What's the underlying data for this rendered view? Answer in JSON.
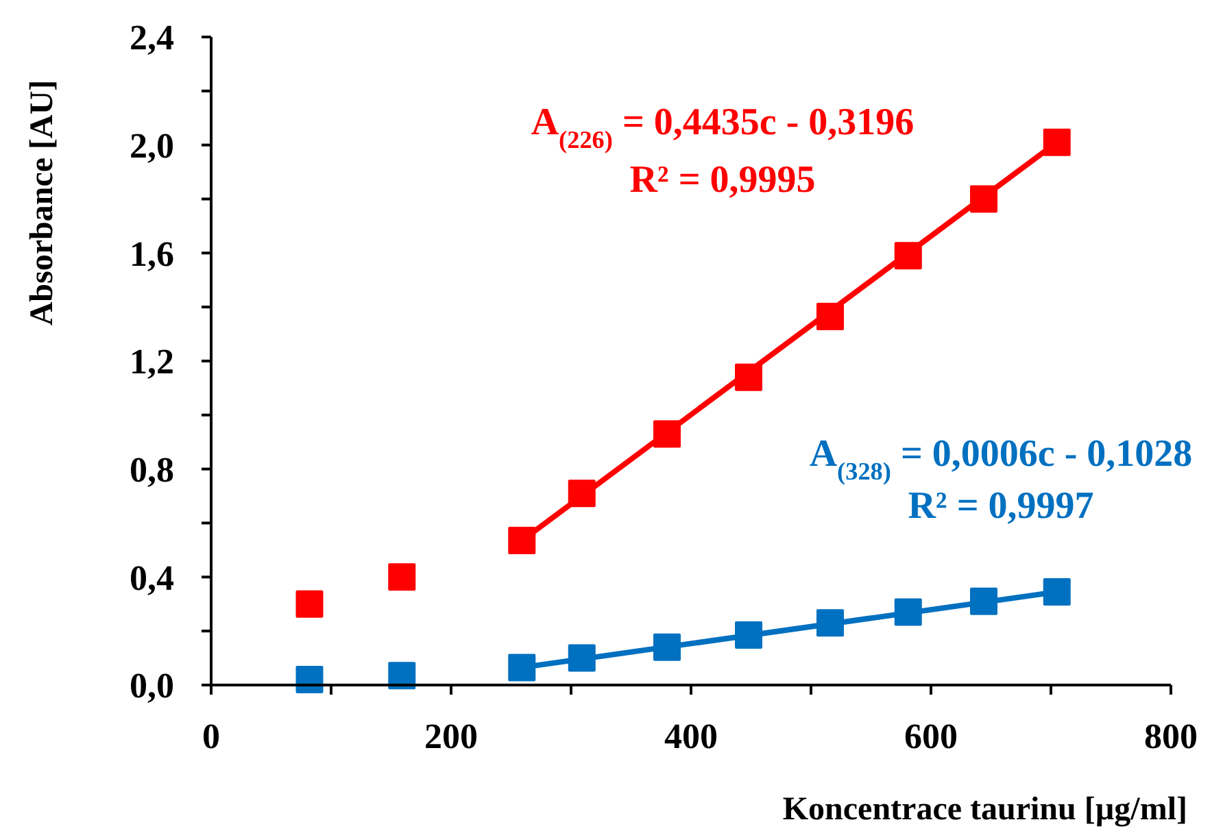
{
  "chart_data": {
    "type": "scatter",
    "xlabel": "Koncentrace taurinu [µg/ml]",
    "ylabel": "Absorbance [AU]",
    "xlim": [
      0,
      800
    ],
    "ylim": [
      0,
      2.4
    ],
    "xticks": [
      0,
      {
        "value": 100,
        "label": null
      },
      200,
      {
        "value": 300,
        "label": null
      },
      400,
      {
        "value": 500,
        "label": null
      },
      600,
      {
        "value": 700,
        "label": null
      },
      800
    ],
    "yticks": [
      {
        "value": 0,
        "label": "0,0"
      },
      {
        "value": 0.2,
        "label": null
      },
      {
        "value": 0.4,
        "label": "0,4"
      },
      {
        "value": 0.6,
        "label": null
      },
      {
        "value": 0.8,
        "label": "0,8"
      },
      {
        "value": 1.0,
        "label": null
      },
      {
        "value": 1.2,
        "label": "1,2"
      },
      {
        "value": 1.4,
        "label": null
      },
      {
        "value": 1.6,
        "label": "1,6"
      },
      {
        "value": 1.8,
        "label": null
      },
      {
        "value": 2.0,
        "label": "2,0"
      },
      {
        "value": 2.2,
        "label": null
      },
      {
        "value": 2.4,
        "label": "2,4"
      }
    ],
    "grid": false,
    "series": [
      {
        "marker": "square",
        "color": "#ff0000",
        "x": [
          82,
          159,
          259,
          309,
          380,
          448,
          516,
          581,
          644,
          705
        ],
        "values": [
          0.3,
          0.4,
          0.535,
          0.71,
          0.93,
          1.14,
          1.365,
          1.59,
          1.8,
          2.01
        ]
      },
      {
        "marker": "square",
        "color": "#0070c0",
        "x": [
          82,
          159,
          259,
          309,
          380,
          448,
          516,
          581,
          644,
          705
        ],
        "values": [
          0.02,
          0.035,
          0.065,
          0.1,
          0.14,
          0.185,
          0.23,
          0.27,
          0.31,
          0.345
        ]
      },
      {
        "type": "line",
        "marker": "none",
        "color": "#ff0000",
        "x": [
          259,
          705
        ],
        "values": [
          0.535,
          2.01
        ]
      },
      {
        "type": "line",
        "marker": "none",
        "color": "#0070c0",
        "x": [
          259,
          705
        ],
        "values": [
          0.065,
          0.345
        ]
      }
    ],
    "annotations": [
      "A$_{(226)}$ = 0,4435c - 0,3196",
      "R² = 0,9995",
      "A$_{(328)}$ = 0,0006c - 0,1028",
      "R² = 0,9997"
    ]
  }
}
